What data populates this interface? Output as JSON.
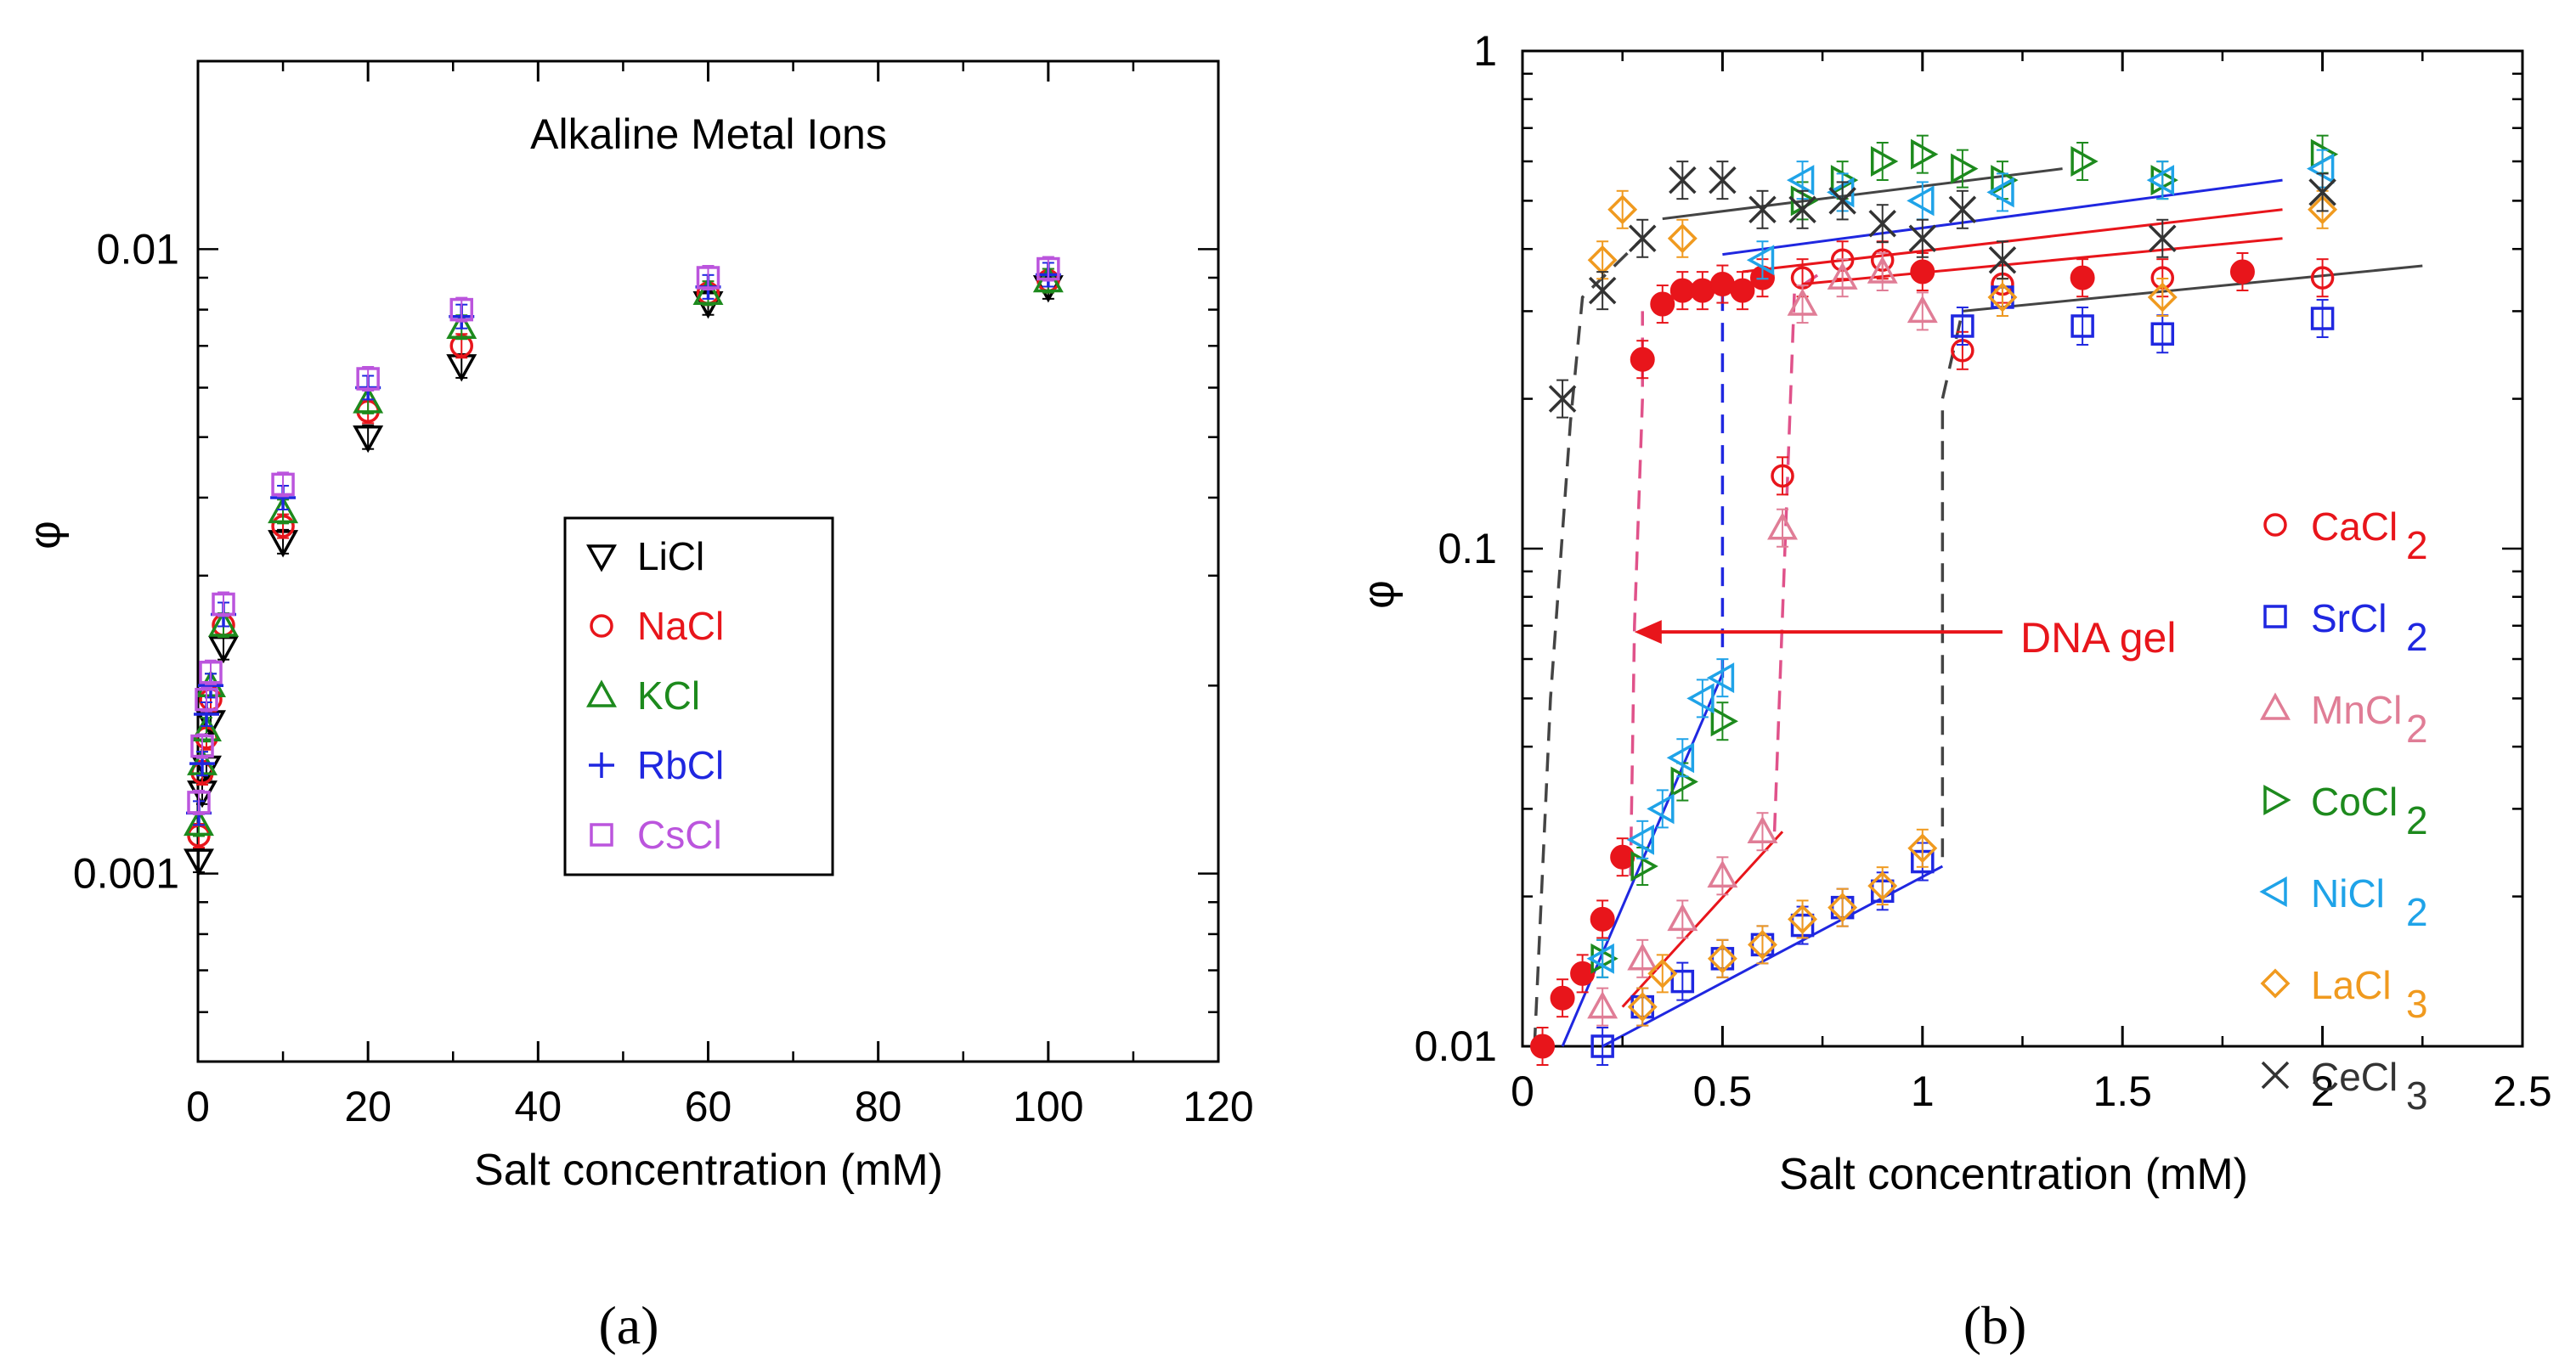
{
  "chart_data": [
    {
      "type": "scatter",
      "panel_label": "(a)",
      "title": "Alkaline Metal Ions",
      "xlabel": "Salt concentration (mM)",
      "ylabel": "φ",
      "xlim": [
        0,
        120
      ],
      "ylim": [
        0.0005,
        0.02
      ],
      "yscale": "log",
      "x_ticks": [
        "0",
        "20",
        "40",
        "60",
        "80",
        "100",
        "120"
      ],
      "y_ticks": [
        "0.001",
        "0.01"
      ],
      "legend_position": "center-right",
      "series": [
        {
          "name": "LiCl",
          "color": "#000000",
          "marker": "triangle-down",
          "x": [
            0.1,
            0.5,
            1,
            1.5,
            3,
            10,
            20,
            31,
            60,
            100
          ],
          "y": [
            0.00105,
            0.00135,
            0.00148,
            0.00175,
            0.0023,
            0.0034,
            0.005,
            0.0065,
            0.0082,
            0.0087
          ]
        },
        {
          "name": "NaCl",
          "color": "#e8151b",
          "marker": "circle",
          "x": [
            0.1,
            0.5,
            1,
            1.5,
            3,
            10,
            20,
            31,
            60,
            100
          ],
          "y": [
            0.00115,
            0.00145,
            0.00165,
            0.0019,
            0.0025,
            0.0036,
            0.0055,
            0.007,
            0.0085,
            0.0089
          ]
        },
        {
          "name": "KCl",
          "color": "#1d8a1d",
          "marker": "triangle-up",
          "x": [
            0.1,
            0.5,
            1,
            1.5,
            3,
            10,
            20,
            31,
            60,
            100
          ],
          "y": [
            0.0012,
            0.0015,
            0.0017,
            0.002,
            0.0025,
            0.0038,
            0.0057,
            0.0075,
            0.0085,
            0.0089
          ]
        },
        {
          "name": "RbCl",
          "color": "#1f27e0",
          "marker": "plus",
          "x": [
            0.1,
            0.5,
            1,
            1.5,
            3,
            10,
            20,
            31,
            60,
            100
          ],
          "y": [
            0.00125,
            0.0015,
            0.0018,
            0.002,
            0.0026,
            0.004,
            0.006,
            0.0078,
            0.0087,
            0.0091
          ]
        },
        {
          "name": "CsCl",
          "color": "#bb55dd",
          "marker": "square",
          "x": [
            0.1,
            0.5,
            1,
            1.5,
            3,
            10,
            20,
            31,
            60,
            100
          ],
          "y": [
            0.0013,
            0.0016,
            0.0019,
            0.0021,
            0.0027,
            0.0042,
            0.0062,
            0.008,
            0.009,
            0.0093
          ]
        }
      ]
    },
    {
      "type": "scatter",
      "panel_label": "(b)",
      "xlabel": "Salt concentration (mM)",
      "ylabel": "φ",
      "xlim": [
        0,
        2.5
      ],
      "ylim": [
        0.01,
        1
      ],
      "yscale": "log",
      "x_ticks": [
        "0",
        "0.5",
        "1",
        "1.5",
        "2",
        "2.5"
      ],
      "y_ticks": [
        "0.01",
        "0.1",
        "1"
      ],
      "legend_position": "right",
      "annotation": {
        "text": "DNA gel",
        "color": "#e8151b",
        "arrow_from": [
          1.2,
          0.068
        ],
        "arrow_to": [
          0.28,
          0.068
        ]
      },
      "series": [
        {
          "name": "CaCl",
          "subscript": "2",
          "color": "#e8151b",
          "marker": "circle",
          "x": [
            0.05,
            0.1,
            0.15,
            0.2,
            0.25,
            0.3,
            0.35,
            0.4,
            0.45,
            0.5,
            0.55,
            0.6,
            0.65,
            0.7,
            0.8,
            0.9,
            1.0,
            1.1,
            1.2,
            1.4,
            1.6,
            1.8,
            2.0
          ],
          "y": [
            0.01,
            0.0125,
            0.014,
            0.018,
            0.024,
            0.24,
            0.31,
            0.33,
            0.33,
            0.34,
            0.33,
            0.35,
            0.14,
            0.35,
            0.38,
            0.38,
            0.36,
            0.25,
            0.34,
            0.35,
            0.35,
            0.36,
            0.35
          ]
        },
        {
          "name": "SrCl",
          "subscript": "2",
          "color": "#1f27e0",
          "marker": "square",
          "x": [
            0.2,
            0.3,
            0.4,
            0.5,
            0.6,
            0.7,
            0.8,
            0.9,
            1.0,
            1.1,
            1.2,
            1.4,
            1.6,
            2.0
          ],
          "y": [
            0.01,
            0.012,
            0.0135,
            0.015,
            0.016,
            0.0175,
            0.019,
            0.0205,
            0.0235,
            0.28,
            0.32,
            0.28,
            0.27,
            0.29
          ]
        },
        {
          "name": "MnCl",
          "subscript": "2",
          "color": "#e07d96",
          "marker": "triangle-up",
          "x": [
            0.2,
            0.3,
            0.4,
            0.5,
            0.6,
            0.65,
            0.7,
            0.8,
            0.9,
            1.0
          ],
          "y": [
            0.012,
            0.015,
            0.018,
            0.022,
            0.027,
            0.11,
            0.31,
            0.35,
            0.36,
            0.3
          ]
        },
        {
          "name": "CoCl",
          "subscript": "2",
          "color": "#1d8a1d",
          "marker": "triangle-right",
          "x": [
            0.2,
            0.3,
            0.4,
            0.5,
            0.7,
            0.8,
            0.9,
            1.0,
            1.1,
            1.2,
            1.4,
            1.6,
            2.0
          ],
          "y": [
            0.015,
            0.023,
            0.034,
            0.045,
            0.5,
            0.55,
            0.6,
            0.62,
            0.58,
            0.55,
            0.6,
            0.55,
            0.62
          ]
        },
        {
          "name": "NiCl",
          "subscript": "2",
          "color": "#1fa3e8",
          "marker": "triangle-left",
          "x": [
            0.2,
            0.3,
            0.35,
            0.4,
            0.45,
            0.5,
            0.6,
            0.7,
            0.8,
            1.0,
            1.2,
            1.6,
            2.0
          ],
          "y": [
            0.015,
            0.026,
            0.03,
            0.038,
            0.05,
            0.055,
            0.38,
            0.55,
            0.52,
            0.5,
            0.52,
            0.55,
            0.58
          ]
        },
        {
          "name": "LaCl",
          "subscript": "3",
          "color": "#f09a1f",
          "marker": "diamond",
          "x": [
            0.2,
            0.25,
            0.3,
            0.35,
            0.4,
            0.5,
            0.6,
            0.7,
            0.8,
            0.9,
            1.0,
            1.2,
            1.6,
            2.0
          ],
          "y": [
            0.38,
            0.48,
            0.012,
            0.014,
            0.42,
            0.015,
            0.016,
            0.018,
            0.019,
            0.021,
            0.025,
            0.32,
            0.32,
            0.48
          ]
        },
        {
          "name": "CeCl",
          "subscript": "3",
          "color": "#333333",
          "marker": "cross",
          "x": [
            0.1,
            0.2,
            0.3,
            0.4,
            0.5,
            0.6,
            0.7,
            0.8,
            0.9,
            1.0,
            1.1,
            1.2,
            1.6,
            2.0
          ],
          "y": [
            0.2,
            0.33,
            0.42,
            0.55,
            0.55,
            0.48,
            0.48,
            0.5,
            0.45,
            0.42,
            0.48,
            0.38,
            0.42,
            0.52
          ]
        }
      ]
    }
  ]
}
